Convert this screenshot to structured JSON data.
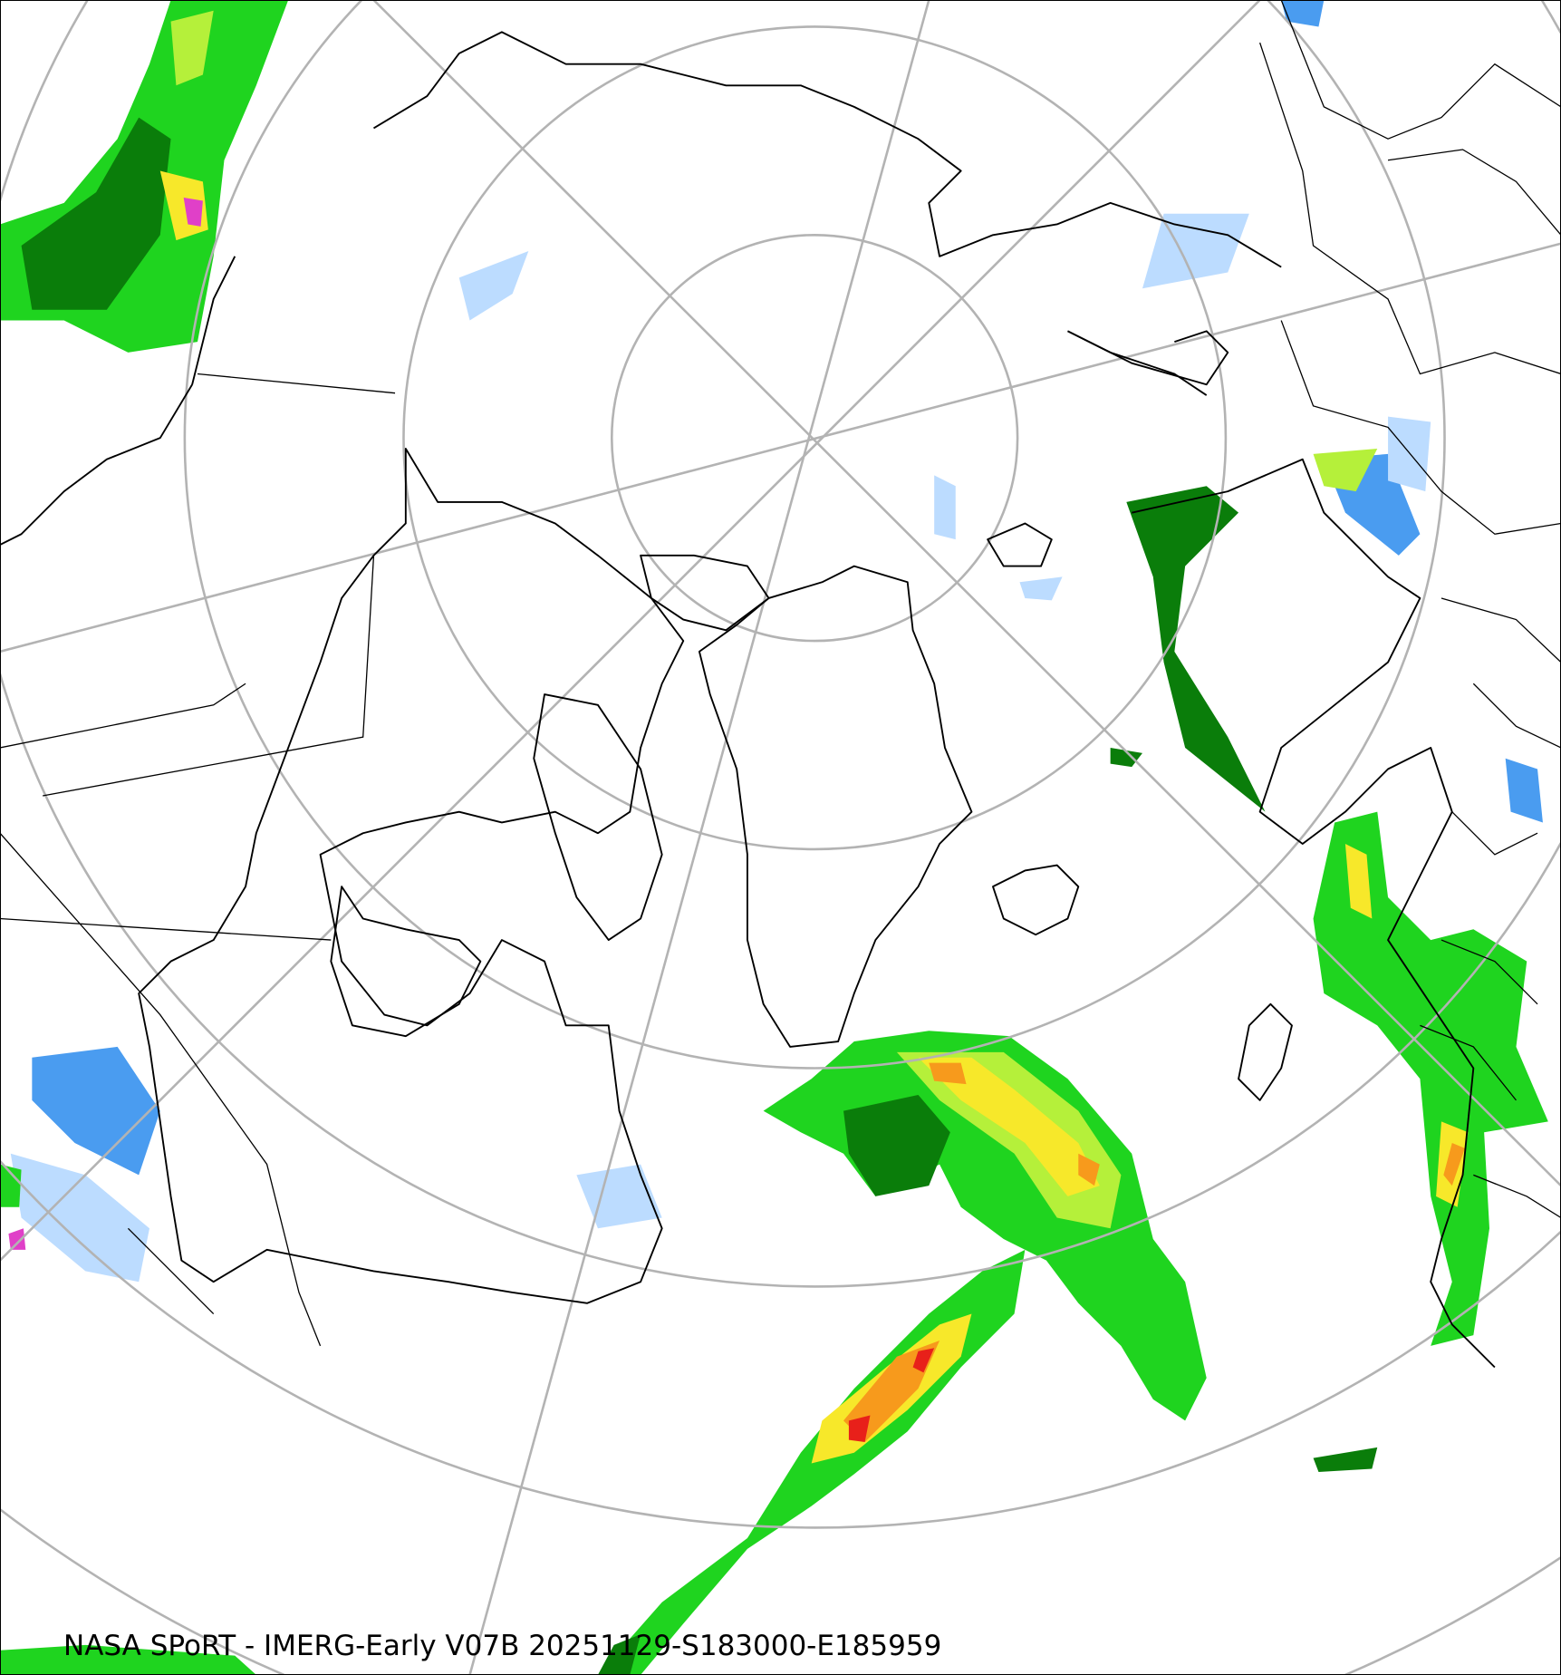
{
  "caption": "NASA SPoRT - IMERG-Early V07B 20251129-S183000-E185959",
  "colors": {
    "graticule": "#b3b3b3",
    "coastline": "#000000",
    "precip_light_blue": "#bcdcff",
    "precip_blue": "#4a9cf0",
    "precip_dark_green": "#0a7d0a",
    "precip_green": "#1fd41f",
    "precip_lime": "#b5f03a",
    "precip_yellow": "#f7e82a",
    "precip_orange": "#f79a1c",
    "precip_red": "#e8201a",
    "precip_magenta": "#e040c8"
  }
}
